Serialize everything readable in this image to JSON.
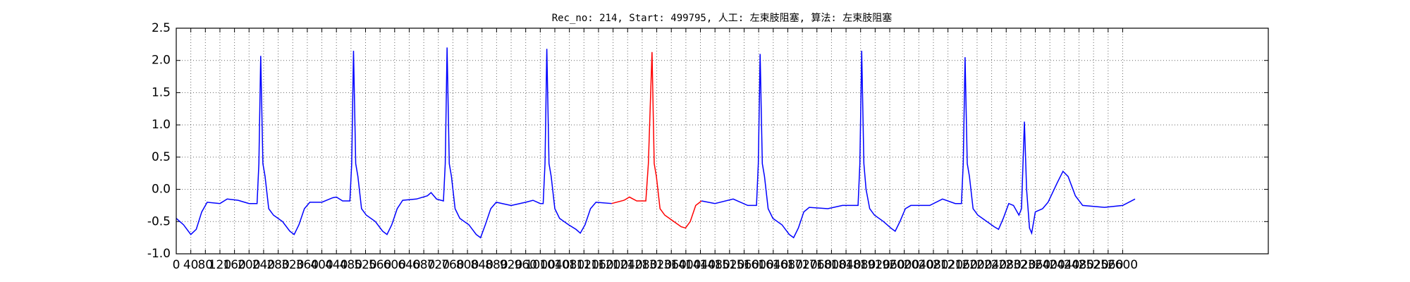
{
  "chart_data": {
    "type": "line",
    "title": "Rec_no: 214, Start: 499795, 人工: 左束肢阻塞, 算法: 左束肢阻塞",
    "xlim": [
      0,
      3000
    ],
    "ylim": [
      -1.0,
      2.5
    ],
    "xticks": [
      0,
      40,
      80,
      120,
      160,
      200,
      240,
      280,
      320,
      360,
      400,
      440,
      480,
      520,
      560,
      600,
      640,
      680,
      720,
      760,
      800,
      840,
      880,
      920,
      960,
      1000,
      1040,
      1080,
      1120,
      1160,
      1200,
      1240,
      1280,
      1320,
      1360,
      1400,
      1440,
      1480,
      1520,
      1560,
      1600,
      1640,
      1680,
      1720,
      1760,
      1800,
      1840,
      1880,
      1920,
      1960,
      2000,
      2040,
      2080,
      2120,
      2160,
      2200,
      2240,
      2280,
      2320,
      2360,
      2400,
      2440,
      2480,
      2520,
      2560,
      2600
    ],
    "yticks": [
      {
        "value": -1.0,
        "label": "-1.0"
      },
      -0.5,
      {
        "value": 0.0,
        "label": "0.0"
      },
      0.5,
      {
        "value": 1.0,
        "label": "1.0"
      },
      1.5,
      {
        "value": 2.0,
        "label": "2.0"
      },
      2.5
    ],
    "grid": true,
    "series": [
      {
        "color": "#0000ff",
        "x": [
          0,
          20,
          40,
          55,
          70,
          85,
          120,
          140,
          170,
          200,
          222,
          227,
          232,
          238,
          244,
          254,
          267,
          292,
          312,
          324,
          337,
          352,
          367,
          400,
          430,
          440,
          457,
          477,
          482,
          487,
          493,
          499,
          509,
          522,
          547,
          567,
          579,
          592,
          607,
          622,
          660,
          690,
          700,
          715,
          734,
          739,
          744,
          750,
          756,
          766,
          779,
          804,
          824,
          836,
          849,
          864,
          879,
          920,
          960,
          980,
          1000,
          1008,
          1013,
          1018,
          1024,
          1030,
          1040,
          1053,
          1078,
          1098,
          1110,
          1123,
          1138,
          1153,
          1196
        ],
        "values": [
          -0.45,
          -0.55,
          -0.7,
          -0.62,
          -0.35,
          -0.2,
          -0.22,
          -0.15,
          -0.17,
          -0.22,
          -0.22,
          0.4,
          2.07,
          0.4,
          0.2,
          -0.3,
          -0.4,
          -0.5,
          -0.65,
          -0.7,
          -0.55,
          -0.3,
          -0.2,
          -0.2,
          -0.13,
          -0.12,
          -0.18,
          -0.18,
          0.4,
          2.15,
          0.4,
          0.2,
          -0.3,
          -0.4,
          -0.5,
          -0.65,
          -0.7,
          -0.55,
          -0.3,
          -0.17,
          -0.15,
          -0.1,
          -0.05,
          -0.15,
          -0.18,
          0.4,
          2.2,
          0.4,
          0.2,
          -0.3,
          -0.45,
          -0.55,
          -0.7,
          -0.75,
          -0.55,
          -0.3,
          -0.2,
          -0.25,
          -0.2,
          -0.17,
          -0.22,
          -0.22,
          0.4,
          2.18,
          0.4,
          0.2,
          -0.3,
          -0.45,
          -0.55,
          -0.62,
          -0.68,
          -0.55,
          -0.3,
          -0.2,
          -0.22
        ]
      },
      {
        "color": "#ff0000",
        "x": [
          1196,
          1230,
          1245,
          1265,
          1290,
          1297,
          1307,
          1313,
          1319,
          1329,
          1342,
          1367,
          1387,
          1399,
          1412,
          1427,
          1443
        ],
        "values": [
          -0.22,
          -0.17,
          -0.12,
          -0.18,
          -0.18,
          0.4,
          2.13,
          0.4,
          0.2,
          -0.3,
          -0.4,
          -0.5,
          -0.58,
          -0.6,
          -0.5,
          -0.25,
          -0.18
        ]
      },
      {
        "color": "#0000ff",
        "x": [
          1443,
          1480,
          1530,
          1570,
          1594,
          1599,
          1604,
          1610,
          1616,
          1626,
          1639,
          1664,
          1684,
          1696,
          1709,
          1724,
          1739,
          1790,
          1830,
          1873,
          1878,
          1883,
          1889,
          1895,
          1905,
          1918,
          1943,
          1963,
          1975,
          1988,
          2003,
          2018,
          2070,
          2105,
          2140,
          2157,
          2162,
          2167,
          2173,
          2179,
          2189,
          2202,
          2227,
          2247,
          2259,
          2272,
          2287,
          2300,
          2315,
          2322,
          2330,
          2336,
          2344,
          2350,
          2360,
          2380,
          2395,
          2420,
          2436,
          2450,
          2470,
          2490,
          2550,
          2600,
          2634
        ],
        "values": [
          -0.18,
          -0.22,
          -0.15,
          -0.25,
          -0.25,
          0.4,
          2.1,
          0.4,
          0.2,
          -0.3,
          -0.45,
          -0.55,
          -0.7,
          -0.75,
          -0.6,
          -0.35,
          -0.28,
          -0.3,
          -0.25,
          -0.25,
          0.4,
          2.15,
          0.4,
          0.0,
          -0.3,
          -0.4,
          -0.5,
          -0.6,
          -0.65,
          -0.5,
          -0.3,
          -0.25,
          -0.25,
          -0.15,
          -0.22,
          -0.22,
          0.4,
          2.05,
          0.4,
          0.2,
          -0.3,
          -0.4,
          -0.5,
          -0.58,
          -0.62,
          -0.45,
          -0.22,
          -0.25,
          -0.4,
          -0.3,
          1.05,
          0.0,
          -0.6,
          -0.68,
          -0.35,
          -0.3,
          -0.2,
          0.1,
          0.28,
          0.2,
          -0.1,
          -0.25,
          -0.28,
          -0.25,
          -0.15
        ]
      }
    ]
  }
}
